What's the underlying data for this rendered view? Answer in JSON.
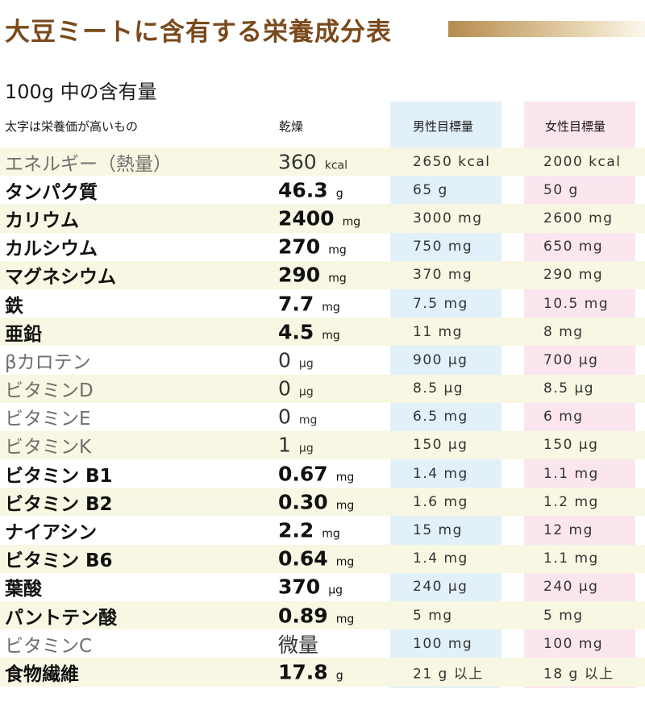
{
  "title": "大豆ミートに含有する栄養成分表",
  "subtitle": "100g 中の含有量",
  "header": {
    "note": "太字は栄養価が高いもの",
    "dry": "乾燥",
    "male": "男性目標量",
    "female": "女性目標量"
  },
  "colors": {
    "title": "#7a4a1c",
    "stripe": "#f7f7e3",
    "male_column": "#e2f1f9",
    "female_column": "#fbe6ef"
  },
  "rows": [
    {
      "name": "エネルギー（熱量）",
      "dry_value": "360",
      "dry_unit": "kcal",
      "male": "2650 kcal",
      "female": "2000 kcal",
      "bold": false
    },
    {
      "name": "タンパク質",
      "dry_value": "46.3",
      "dry_unit": "g",
      "male": "65 g",
      "female": "50 g",
      "bold": true
    },
    {
      "name": "カリウム",
      "dry_value": "2400",
      "dry_unit": "mg",
      "male": "3000 mg",
      "female": "2600 mg",
      "bold": true
    },
    {
      "name": "カルシウム",
      "dry_value": "270",
      "dry_unit": "mg",
      "male": "750 mg",
      "female": "650 mg",
      "bold": true
    },
    {
      "name": "マグネシウム",
      "dry_value": "290",
      "dry_unit": "mg",
      "male": "370 mg",
      "female": "290 mg",
      "bold": true
    },
    {
      "name": "鉄",
      "dry_value": "7.7",
      "dry_unit": "mg",
      "male": "7.5 mg",
      "female": "10.5 mg",
      "bold": true
    },
    {
      "name": "亜鉛",
      "dry_value": "4.5",
      "dry_unit": "mg",
      "male": "11 mg",
      "female": "8 mg",
      "bold": true
    },
    {
      "name": "βカロテン",
      "dry_value": "0",
      "dry_unit": "μg",
      "male": "900 μg",
      "female": "700 μg",
      "bold": false
    },
    {
      "name": "ビタミンD",
      "dry_value": "0",
      "dry_unit": "μg",
      "male": "8.5 μg",
      "female": "8.5 μg",
      "bold": false
    },
    {
      "name": "ビタミンE",
      "dry_value": "0",
      "dry_unit": "mg",
      "male": "6.5 mg",
      "female": "6 mg",
      "bold": false
    },
    {
      "name": "ビタミンK",
      "dry_value": "1",
      "dry_unit": "μg",
      "male": "150 μg",
      "female": "150 μg",
      "bold": false
    },
    {
      "name": "ビタミン B1",
      "dry_value": "0.67",
      "dry_unit": "mg",
      "male": "1.4 mg",
      "female": "1.1 mg",
      "bold": true
    },
    {
      "name": "ビタミン B2",
      "dry_value": "0.30",
      "dry_unit": "mg",
      "male": "1.6 mg",
      "female": "1.2 mg",
      "bold": true
    },
    {
      "name": "ナイアシン",
      "dry_value": "2.2",
      "dry_unit": "mg",
      "male": "15 mg",
      "female": "12 mg",
      "bold": true
    },
    {
      "name": "ビタミン B6",
      "dry_value": "0.64",
      "dry_unit": "mg",
      "male": "1.4 mg",
      "female": "1.1 mg",
      "bold": true
    },
    {
      "name": "葉酸",
      "dry_value": "370",
      "dry_unit": "μg",
      "male": "240 μg",
      "female": "240 μg",
      "bold": true
    },
    {
      "name": "パントテン酸",
      "dry_value": "0.89",
      "dry_unit": "mg",
      "male": "5 mg",
      "female": "5 mg",
      "bold": true
    },
    {
      "name": "ビタミンC",
      "dry_value": "微量",
      "dry_unit": "",
      "male": "100 mg",
      "female": "100 mg",
      "bold": false
    },
    {
      "name": "食物繊維",
      "dry_value": "17.8",
      "dry_unit": "g",
      "male": "21 g 以上",
      "female": "18 g 以上",
      "bold": true
    }
  ]
}
